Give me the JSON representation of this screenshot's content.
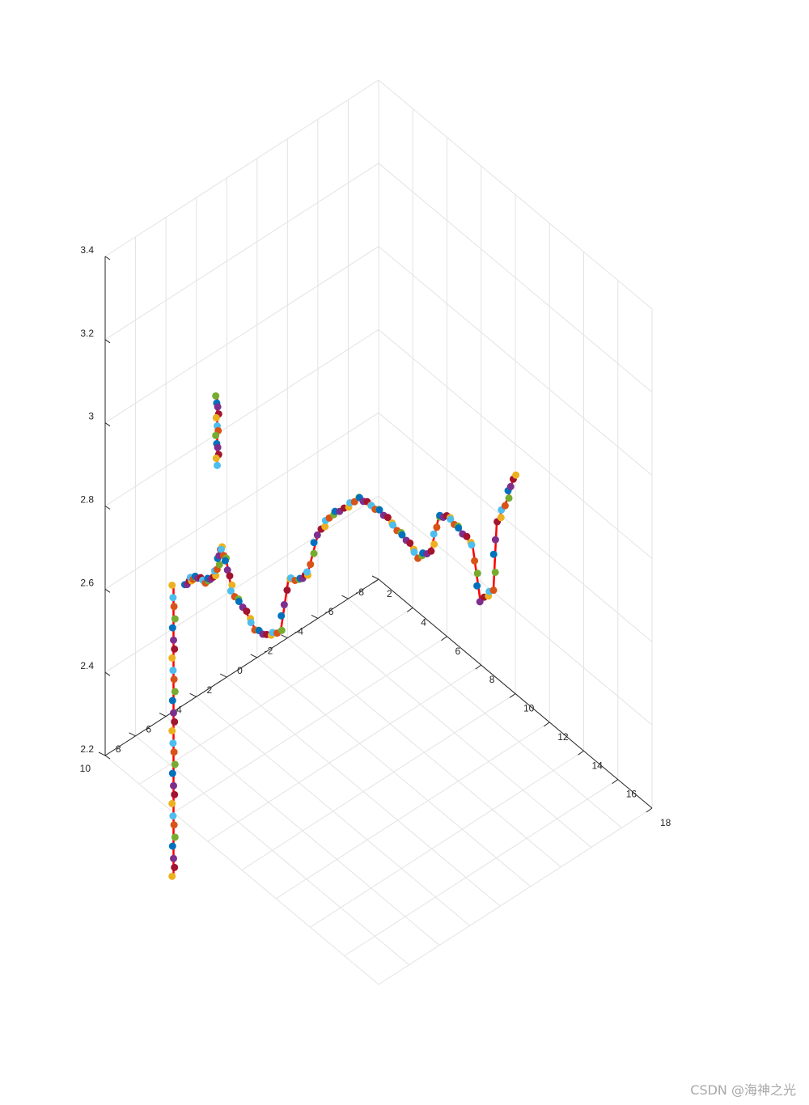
{
  "watermark": "CSDN @海神之光",
  "chart_data": {
    "type": "scatter",
    "view": "3d-perspective",
    "title": "",
    "xlabel": "",
    "ylabel": "",
    "zlabel": "",
    "xlim": [
      2,
      18
    ],
    "ylim": [
      -8,
      10
    ],
    "zlim": [
      2.2,
      3.4
    ],
    "x_ticks": [
      {
        "v": 2,
        "label": "2"
      },
      {
        "v": 4,
        "label": "4"
      },
      {
        "v": 6,
        "label": "6"
      },
      {
        "v": 8,
        "label": "8"
      },
      {
        "v": 10,
        "label": "10"
      },
      {
        "v": 12,
        "label": "12"
      },
      {
        "v": 14,
        "label": "14"
      },
      {
        "v": 16,
        "label": "16"
      },
      {
        "v": 18,
        "label": "18"
      }
    ],
    "y_ticks": [
      {
        "v": -8,
        "label": "-8"
      },
      {
        "v": -6,
        "label": "-6"
      },
      {
        "v": -4,
        "label": "-4"
      },
      {
        "v": -2,
        "label": "-2"
      },
      {
        "v": 0,
        "label": "0"
      },
      {
        "v": 2,
        "label": "2"
      },
      {
        "v": 4,
        "label": "4"
      },
      {
        "v": 6,
        "label": "6"
      },
      {
        "v": 8,
        "label": "8"
      },
      {
        "v": 10,
        "label": "10"
      }
    ],
    "z_ticks": [
      {
        "v": 2.2,
        "label": "2.2"
      },
      {
        "v": 2.4,
        "label": "2.4"
      },
      {
        "v": 2.6,
        "label": "2.6"
      },
      {
        "v": 2.8,
        "label": "2.8"
      },
      {
        "v": 3.0,
        "label": "3"
      },
      {
        "v": 3.2,
        "label": "3.2"
      },
      {
        "v": 3.4,
        "label": "3.4"
      }
    ],
    "grid": true,
    "line_color": "#ff0000",
    "marker_colors": [
      "#0072bd",
      "#d95319",
      "#edb120",
      "#7e2f8e",
      "#77ac30",
      "#4dbeee",
      "#a2142f"
    ],
    "series": [
      {
        "points": [
          [
            2.3,
            5.0,
            2.5
          ],
          [
            2.6,
            5.0,
            2.53
          ],
          [
            3.1,
            5.1,
            2.55
          ],
          [
            3.6,
            5.2,
            2.56
          ],
          [
            4.3,
            5.5,
            2.6
          ],
          [
            4.9,
            5.8,
            2.66
          ],
          [
            5.2,
            6.0,
            2.72
          ],
          [
            6.0,
            6.5,
            2.72
          ],
          [
            6.3,
            6.5,
            2.66
          ],
          [
            6.7,
            6.2,
            2.63
          ],
          [
            7.2,
            6.0,
            2.59
          ],
          [
            7.6,
            5.7,
            2.58
          ],
          [
            8.1,
            5.3,
            2.6
          ],
          [
            8.2,
            4.9,
            2.72
          ],
          [
            8.6,
            4.5,
            2.72
          ],
          [
            8.8,
            4.3,
            2.74
          ],
          [
            9.2,
            4.1,
            2.84
          ],
          [
            9.6,
            3.8,
            2.89
          ],
          [
            10.0,
            3.3,
            2.91
          ],
          [
            10.4,
            2.8,
            2.94
          ],
          [
            10.8,
            2.5,
            2.93
          ],
          [
            11.2,
            2.2,
            2.92
          ],
          [
            11.6,
            1.8,
            2.89
          ],
          [
            12.0,
            1.4,
            2.86
          ],
          [
            12.3,
            1.0,
            2.82
          ],
          [
            12.6,
            0.5,
            2.83
          ],
          [
            12.9,
            0.3,
            2.92
          ],
          [
            13.3,
            0.1,
            2.93
          ],
          [
            13.6,
            -0.3,
            2.9
          ],
          [
            13.9,
            -0.8,
            2.86
          ],
          [
            14.0,
            -1.2,
            2.72
          ],
          [
            14.5,
            -1.5,
            2.76
          ],
          [
            14.6,
            -1.6,
            2.92
          ],
          [
            14.9,
            -2.0,
            2.98
          ],
          [
            15.1,
            -2.2,
            3.04
          ]
        ]
      },
      {
        "points": [
          [
            2.0,
            5.5,
            2.5
          ],
          [
            2.0,
            5.5,
            2.4
          ],
          [
            2.0,
            5.5,
            2.3
          ],
          [
            2.0,
            5.5,
            2.2
          ],
          [
            2.0,
            5.5,
            2.1
          ],
          [
            2.0,
            5.5,
            2.0
          ],
          [
            2.0,
            5.5,
            1.9
          ],
          [
            2.0,
            5.5,
            1.8
          ]
        ]
      },
      {
        "points": [
          [
            5.0,
            6.0,
            3.07
          ],
          [
            5.0,
            6.0,
            3.02
          ],
          [
            5.0,
            6.0,
            2.96
          ],
          [
            5.0,
            6.0,
            2.91
          ]
        ]
      }
    ]
  }
}
